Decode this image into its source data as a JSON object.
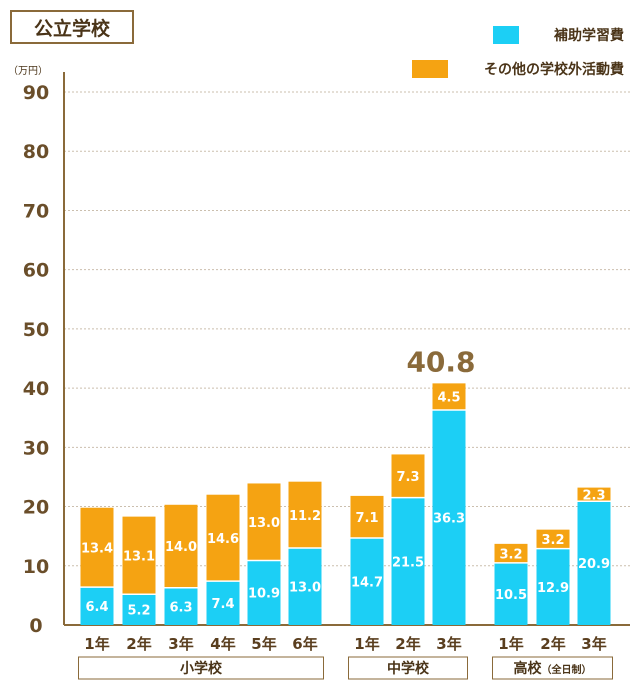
{
  "title": "公立学校",
  "chart_data": {
    "type": "bar",
    "stacked": true,
    "unit_label": "（万円）",
    "ylim": [
      0,
      90
    ],
    "yticks": [
      0,
      10,
      20,
      30,
      40,
      50,
      60,
      70,
      80,
      90
    ],
    "grid": true,
    "legend_position": "top-right",
    "categories": [
      "1年",
      "2年",
      "3年",
      "4年",
      "5年",
      "6年",
      "1年",
      "2年",
      "3年",
      "1年",
      "2年",
      "3年"
    ],
    "category_groups": [
      0,
      0,
      0,
      0,
      0,
      0,
      1,
      1,
      1,
      2,
      2,
      2
    ],
    "groups": [
      {
        "label": "小学校",
        "sub": ""
      },
      {
        "label": "中学校",
        "sub": ""
      },
      {
        "label": "高校",
        "sub": "（全日制）"
      }
    ],
    "series": [
      {
        "name": "補助学習費",
        "color": "#1ccff5",
        "values": [
          6.4,
          5.2,
          6.3,
          7.4,
          10.9,
          13.0,
          14.7,
          21.5,
          36.3,
          10.5,
          12.9,
          20.9
        ],
        "labels": [
          "6.4",
          "5.2",
          "6.3",
          "7.4",
          "10.9",
          "13.0",
          "14.7",
          "21.5",
          "36.3",
          "10.5",
          "12.9",
          "20.9"
        ]
      },
      {
        "name": "その他の学校外活動費",
        "color": "#f5a312",
        "values": [
          13.4,
          13.1,
          14.0,
          14.6,
          13.0,
          11.2,
          7.1,
          7.3,
          4.5,
          3.2,
          3.2,
          2.3
        ],
        "labels": [
          "13.4",
          "13.1",
          "14.0",
          "14.6",
          "13.0",
          "11.2",
          "7.1",
          "7.3",
          "4.5",
          "3.2",
          "3.2",
          "2.3"
        ]
      }
    ],
    "annotation": {
      "text": "40.8",
      "category_index": 8
    }
  }
}
